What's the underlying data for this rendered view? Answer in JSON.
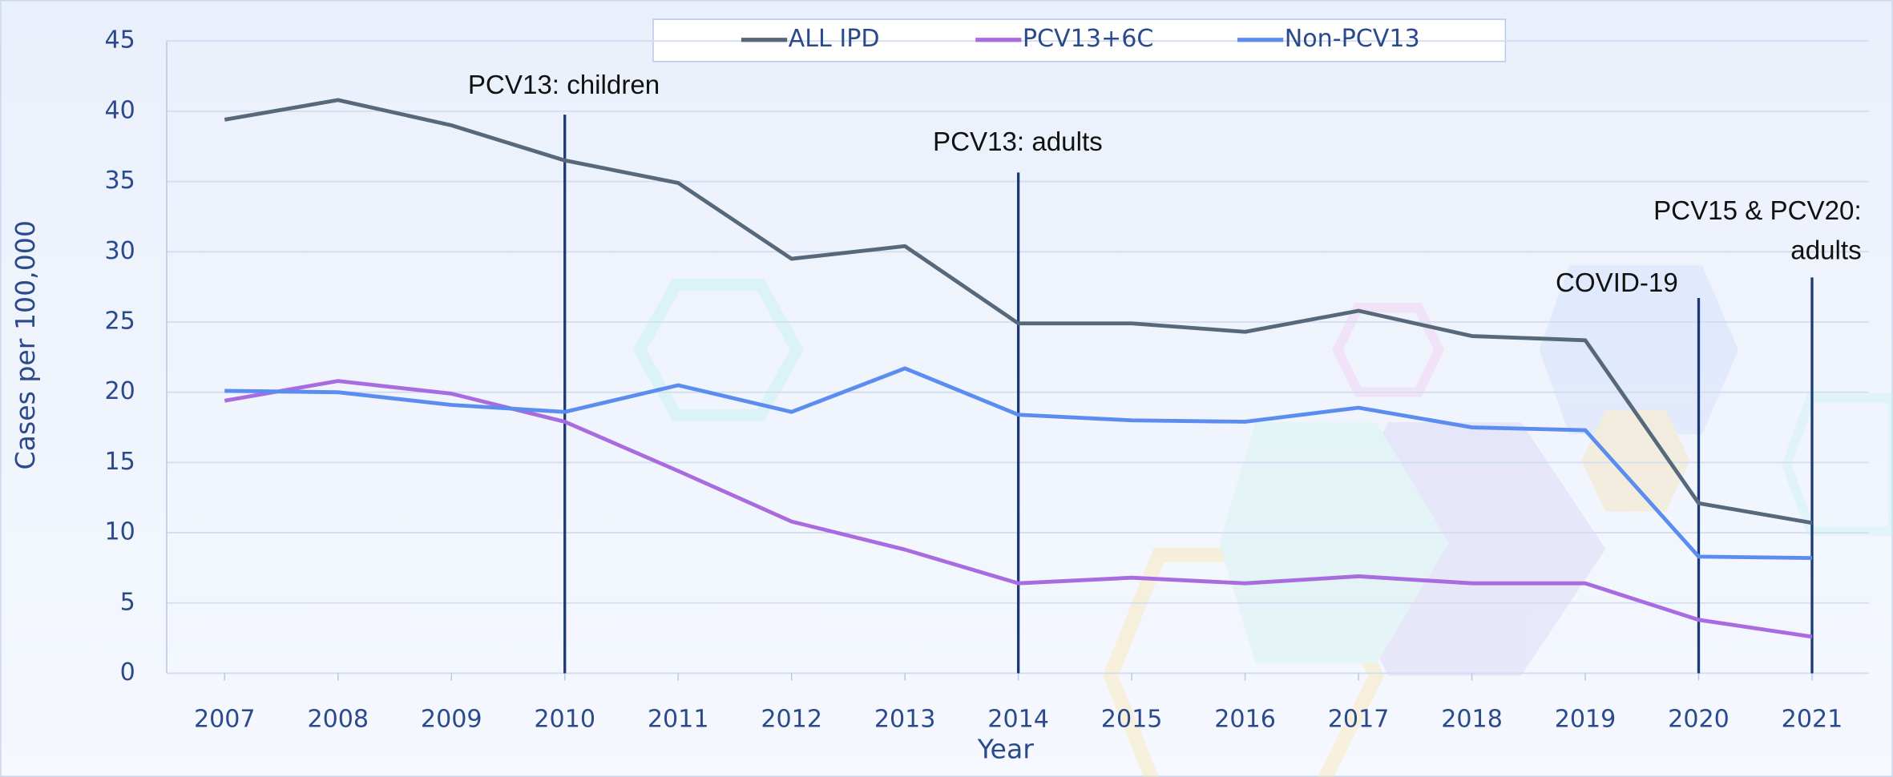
{
  "chart_data": {
    "type": "line",
    "x_label": "Year",
    "y_label": "Cases per 100,000",
    "categories": [
      "2007",
      "2008",
      "2009",
      "2010",
      "2011",
      "2012",
      "2013",
      "2014",
      "2015",
      "2016",
      "2017",
      "2018",
      "2019",
      "2020",
      "2021"
    ],
    "series": [
      {
        "name": "ALL IPD",
        "color": "#56687a",
        "values": [
          39.4,
          40.8,
          39.0,
          36.5,
          34.9,
          29.5,
          30.4,
          24.9,
          24.9,
          24.3,
          25.8,
          24.0,
          23.7,
          12.1,
          10.7
        ]
      },
      {
        "name": "PCV13+6C",
        "color": "#a96be0",
        "values": [
          19.4,
          20.8,
          19.9,
          17.9,
          14.4,
          10.8,
          8.8,
          6.4,
          6.8,
          6.4,
          6.9,
          6.4,
          6.4,
          3.8,
          2.6
        ]
      },
      {
        "name": "Non-PCV13",
        "color": "#5b8cf0",
        "values": [
          20.1,
          20.0,
          19.1,
          18.6,
          20.5,
          18.6,
          21.7,
          18.4,
          18.0,
          17.9,
          18.9,
          17.5,
          17.3,
          8.3,
          8.2
        ]
      }
    ],
    "ylim": [
      0,
      45
    ],
    "yticks": [
      0,
      5,
      10,
      15,
      20,
      25,
      30,
      35,
      40,
      45
    ],
    "grid": true,
    "legend": "top",
    "annotations": [
      {
        "x": "2010",
        "lines": [
          "PCV13: children"
        ]
      },
      {
        "x": "2014",
        "lines": [
          "PCV13: adults"
        ]
      },
      {
        "x": "2020",
        "lines": [
          "COVID-19"
        ]
      },
      {
        "x": "2021",
        "lines": [
          "PCV15 & PCV20:",
          "adults"
        ]
      }
    ]
  }
}
